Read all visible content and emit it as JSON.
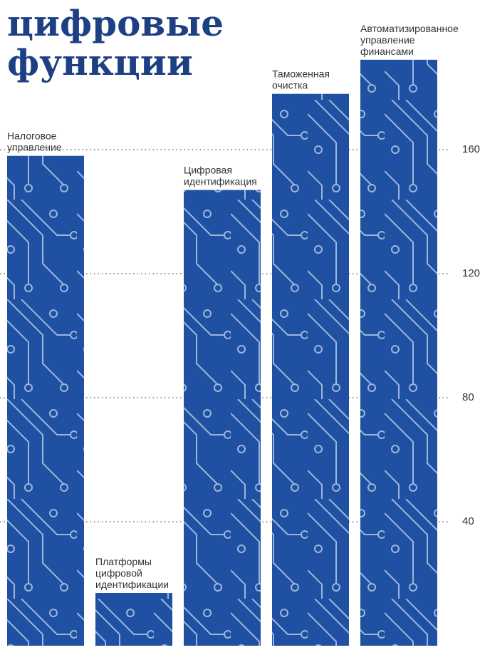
{
  "chart_data": {
    "type": "bar",
    "title": [
      "цифровые",
      "функции"
    ],
    "categories": [
      [
        "Налоговое",
        "управление"
      ],
      [
        "Платформы",
        "цифровой",
        "идентификации"
      ],
      [
        "Цифровая",
        "идентификация"
      ],
      [
        "Таможенная",
        "очистка"
      ],
      [
        "Автоматизированное",
        "управление",
        "финансами"
      ]
    ],
    "values": [
      158,
      17,
      147,
      178,
      189
    ],
    "color": "#1f50a2",
    "ylim": [
      0,
      200
    ],
    "yticks": [
      40,
      80,
      120,
      160
    ],
    "grid": true
  }
}
